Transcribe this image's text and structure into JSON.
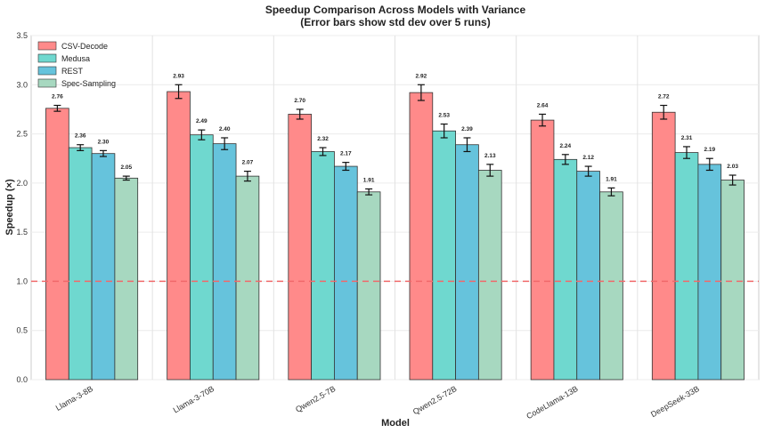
{
  "chart_data": {
    "type": "bar",
    "title": "Speedup Comparison Across Models with Variance",
    "subtitle": "(Error bars show std dev over 5 runs)",
    "xlabel": "Model",
    "ylabel": "Speedup (×)",
    "ylim": [
      0,
      3.5
    ],
    "yticks": [
      0.0,
      0.5,
      1.0,
      1.5,
      2.0,
      2.5,
      3.0,
      3.5
    ],
    "ytick_labels": [
      "0.0",
      "0.5",
      "1.0",
      "1.5",
      "2.0",
      "2.5",
      "3.0",
      "3.5"
    ],
    "grid": true,
    "legend_position": "top-left",
    "reference_line": {
      "y": 1.0,
      "color": "#f0696b",
      "style": "dashed"
    },
    "categories": [
      "Llama-3-8B",
      "Llama-3-70B",
      "Qwen2.5-7B",
      "Qwen2.5-72B",
      "CodeLlama-13B",
      "DeepSeek-33B"
    ],
    "series": [
      {
        "name": "CSV-Decode",
        "color": "#ff8a8a",
        "values": [
          2.76,
          2.93,
          2.7,
          2.92,
          2.64,
          2.72
        ],
        "labels": [
          "2.76",
          "2.93",
          "2.70",
          "2.92",
          "2.64",
          "2.72"
        ],
        "errors": [
          0.03,
          0.07,
          0.05,
          0.08,
          0.06,
          0.07
        ]
      },
      {
        "name": "Medusa",
        "color": "#6fd8cf",
        "values": [
          2.36,
          2.49,
          2.32,
          2.53,
          2.24,
          2.31
        ],
        "labels": [
          "2.36",
          "2.49",
          "2.32",
          "2.53",
          "2.24",
          "2.31"
        ],
        "errors": [
          0.03,
          0.05,
          0.04,
          0.07,
          0.05,
          0.06
        ]
      },
      {
        "name": "REST",
        "color": "#66c3dc",
        "values": [
          2.3,
          2.4,
          2.17,
          2.39,
          2.12,
          2.19
        ],
        "labels": [
          "2.30",
          "2.40",
          "2.17",
          "2.39",
          "2.12",
          "2.19"
        ],
        "errors": [
          0.03,
          0.06,
          0.04,
          0.07,
          0.05,
          0.06
        ]
      },
      {
        "name": "Spec-Sampling",
        "color": "#a7d8c0",
        "values": [
          2.05,
          2.07,
          1.91,
          2.13,
          1.91,
          2.03
        ],
        "labels": [
          "2.05",
          "2.07",
          "1.91",
          "2.13",
          "1.91",
          "2.03"
        ],
        "errors": [
          0.02,
          0.05,
          0.03,
          0.06,
          0.04,
          0.05
        ]
      }
    ]
  }
}
